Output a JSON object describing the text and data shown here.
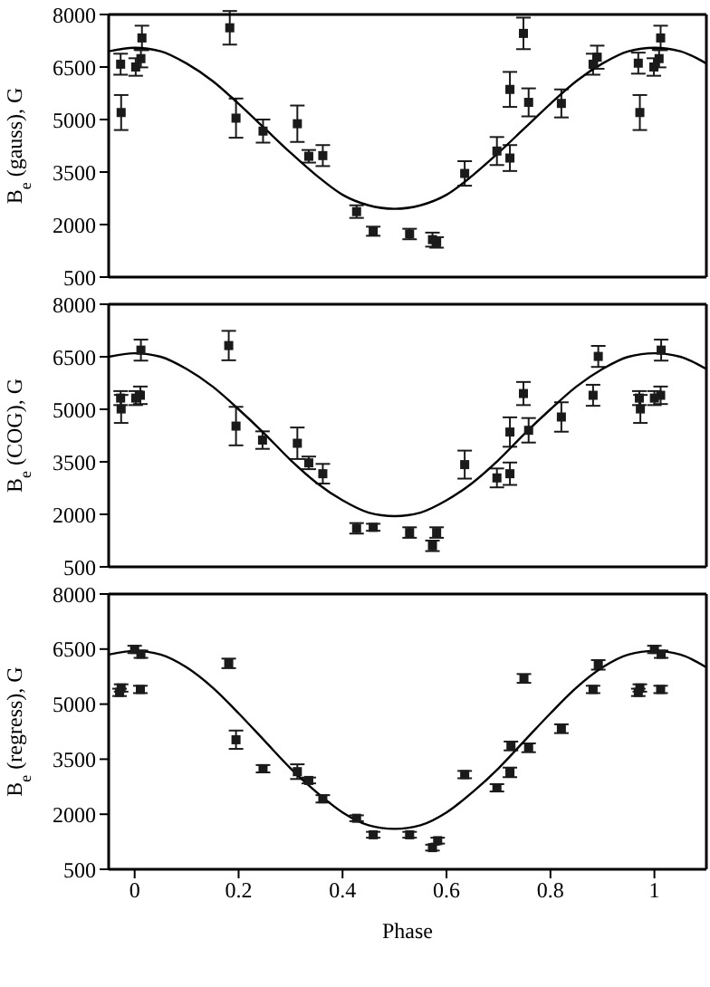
{
  "chart_data": [
    {
      "type": "scatter",
      "ylabel": "B$_{e}$ (gauss), G",
      "xlim": [
        -0.05,
        1.1
      ],
      "xticks": [
        0,
        0.2,
        0.4,
        0.6,
        0.8,
        1
      ],
      "ylim": [
        500,
        8000
      ],
      "yticks": [
        500,
        2000,
        3500,
        5000,
        6500,
        8000
      ],
      "tick_labels": "y",
      "series": [
        {
          "type": "scatter",
          "color": "#1a1a1a",
          "marker": "square",
          "x": [
            -0.027,
            -0.026,
            0.002,
            0.012,
            0.014,
            0.183,
            0.195,
            0.247,
            0.313,
            0.335,
            0.362,
            0.427,
            0.459,
            0.529,
            0.573,
            0.581,
            0.635,
            0.697,
            0.722,
            0.722,
            0.748,
            0.758,
            0.821,
            0.882,
            0.89,
            0.969,
            0.972,
            0.999,
            1.009,
            1.012
          ],
          "values": [
            6580,
            5200,
            6500,
            6740,
            7330,
            7620,
            5040,
            4670,
            4880,
            3950,
            3970,
            2370,
            1810,
            1730,
            1570,
            1490,
            3460,
            4100,
            5860,
            3900,
            7460,
            5490,
            5460,
            6580,
            6780,
            6610,
            5200,
            6500,
            6740,
            7330
          ],
          "errors": [
            300,
            500,
            250,
            250,
            350,
            480,
            560,
            330,
            520,
            180,
            300,
            180,
            130,
            150,
            200,
            150,
            350,
            400,
            500,
            370,
            450,
            400,
            400,
            300,
            330,
            300,
            500,
            250,
            250,
            350
          ]
        },
        {
          "type": "line",
          "color": "#000000",
          "marker": "none",
          "line_style": "solid",
          "x": [
            -0.05,
            0,
            0.05,
            0.1,
            0.15,
            0.2,
            0.25,
            0.3,
            0.35,
            0.4,
            0.45,
            0.5,
            0.55,
            0.6,
            0.65,
            0.7,
            0.75,
            0.8,
            0.85,
            0.9,
            0.95,
            1,
            1.05,
            1.1
          ],
          "values": [
            6950,
            7050,
            6950,
            6600,
            6100,
            5450,
            4750,
            4050,
            3400,
            2850,
            2550,
            2450,
            2550,
            2850,
            3400,
            4050,
            4750,
            5450,
            6100,
            6600,
            6950,
            7050,
            6950,
            6600
          ]
        }
      ]
    },
    {
      "type": "scatter",
      "ylabel": "B$_{e}$ (COG), G",
      "xlim": [
        -0.05,
        1.1
      ],
      "xticks": [
        0,
        0.2,
        0.4,
        0.6,
        0.8,
        1
      ],
      "ylim": [
        500,
        8000
      ],
      "yticks": [
        500,
        2000,
        3500,
        5000,
        6500,
        8000
      ],
      "tick_labels": "y",
      "series": [
        {
          "type": "scatter",
          "color": "#1a1a1a",
          "marker": "square",
          "x": [
            -0.027,
            -0.026,
            0.002,
            0.011,
            0.012,
            0.181,
            0.195,
            0.246,
            0.313,
            0.335,
            0.362,
            0.427,
            0.459,
            0.529,
            0.573,
            0.581,
            0.635,
            0.697,
            0.722,
            0.722,
            0.748,
            0.758,
            0.821,
            0.882,
            0.892,
            0.971,
            0.973,
            1.0,
            1.012,
            1.013
          ],
          "values": [
            5320,
            5010,
            5320,
            5400,
            6690,
            6820,
            4520,
            4120,
            4030,
            3470,
            3160,
            1600,
            1630,
            1480,
            1100,
            1480,
            3420,
            3040,
            4350,
            3160,
            5450,
            4400,
            4780,
            5400,
            6510,
            5320,
            5010,
            5320,
            5400,
            6690
          ],
          "errors": [
            200,
            400,
            200,
            250,
            300,
            420,
            550,
            250,
            450,
            180,
            280,
            150,
            100,
            150,
            150,
            150,
            400,
            270,
            420,
            320,
            330,
            350,
            420,
            300,
            300,
            200,
            400,
            200,
            250,
            300
          ]
        },
        {
          "type": "line",
          "color": "#000000",
          "marker": "none",
          "line_style": "solid",
          "x": [
            -0.05,
            0,
            0.05,
            0.1,
            0.15,
            0.2,
            0.25,
            0.3,
            0.35,
            0.4,
            0.45,
            0.5,
            0.55,
            0.6,
            0.65,
            0.7,
            0.75,
            0.8,
            0.85,
            0.9,
            0.95,
            1,
            1.05,
            1.1
          ],
          "values": [
            6500,
            6600,
            6500,
            6150,
            5650,
            5000,
            4300,
            3550,
            2900,
            2400,
            2050,
            1950,
            2050,
            2400,
            2900,
            3550,
            4300,
            5000,
            5650,
            6150,
            6500,
            6600,
            6500,
            6150
          ]
        }
      ]
    },
    {
      "type": "scatter",
      "ylabel": "B$_{e}$ (regress), G",
      "xlabel": "Phase",
      "xlim": [
        -0.05,
        1.1
      ],
      "xticks": [
        0,
        0.2,
        0.4,
        0.6,
        0.8,
        1
      ],
      "ylim": [
        500,
        8000
      ],
      "yticks": [
        500,
        2000,
        3500,
        5000,
        6500,
        8000
      ],
      "series": [
        {
          "type": "scatter",
          "color": "#1a1a1a",
          "marker": "square",
          "x": [
            -0.029,
            -0.026,
            0.0,
            0.011,
            0.012,
            0.181,
            0.195,
            0.247,
            0.313,
            0.335,
            0.362,
            0.427,
            0.459,
            0.529,
            0.573,
            0.583,
            0.635,
            0.697,
            0.722,
            0.724,
            0.749,
            0.758,
            0.821,
            0.882,
            0.892,
            0.969,
            0.972,
            1.0,
            1.012,
            1.013
          ],
          "values": [
            5320,
            5440,
            6490,
            5400,
            6360,
            6110,
            4030,
            3240,
            3160,
            2920,
            2420,
            1890,
            1440,
            1440,
            1090,
            1280,
            3080,
            2720,
            3140,
            3860,
            5700,
            3810,
            4330,
            5400,
            6070,
            5320,
            5440,
            6490,
            5400,
            6360
          ],
          "errors": [
            100,
            100,
            100,
            100,
            100,
            130,
            250,
            100,
            200,
            80,
            100,
            80,
            80,
            80,
            80,
            80,
            100,
            100,
            130,
            120,
            120,
            120,
            120,
            100,
            130,
            100,
            100,
            100,
            100,
            100
          ]
        },
        {
          "type": "line",
          "color": "#000000",
          "marker": "none",
          "line_style": "solid",
          "x": [
            -0.05,
            0,
            0.05,
            0.1,
            0.15,
            0.2,
            0.25,
            0.3,
            0.35,
            0.4,
            0.45,
            0.5,
            0.55,
            0.6,
            0.65,
            0.7,
            0.75,
            0.8,
            0.85,
            0.9,
            0.95,
            1,
            1.05,
            1.1
          ],
          "values": [
            6350,
            6450,
            6350,
            6000,
            5450,
            4750,
            4000,
            3250,
            2600,
            2050,
            1700,
            1600,
            1700,
            2050,
            2600,
            3250,
            4000,
            4750,
            5450,
            6000,
            6350,
            6450,
            6350,
            6000
          ]
        }
      ]
    }
  ]
}
